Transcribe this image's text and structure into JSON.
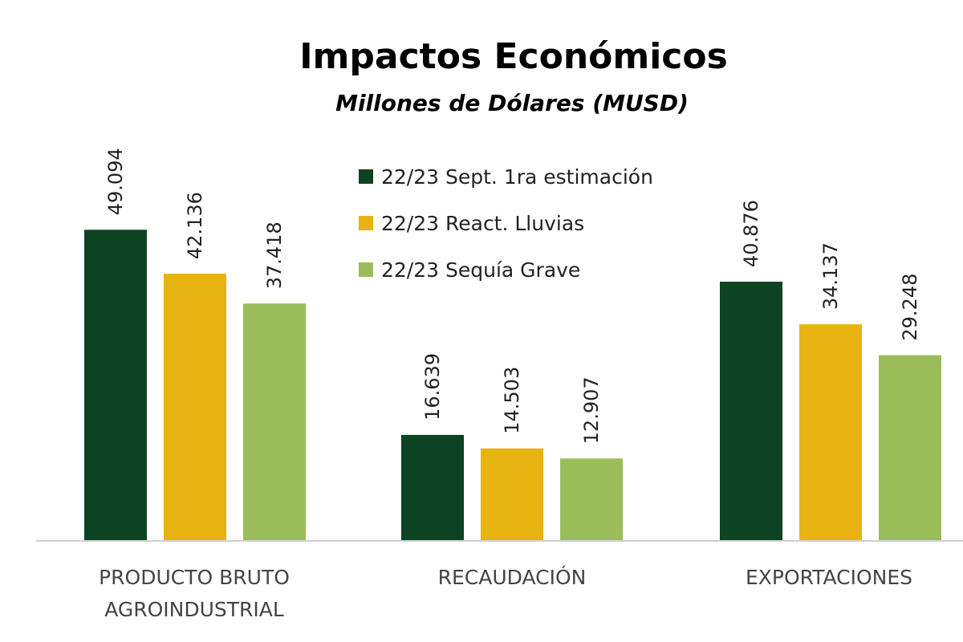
{
  "chart_data": {
    "type": "bar",
    "title": "Impactos Económicos",
    "subtitle": "Millones de Dólares (MUSD)",
    "categories": [
      [
        "PRODUCTO BRUTO",
        "AGROINDUSTRIAL"
      ],
      [
        "RECAUDACIÓN"
      ],
      [
        "EXPORTACIONES"
      ]
    ],
    "series": [
      {
        "name": "22/23 Sept. 1ra estimación",
        "color": "#0b4323",
        "values": [
          49094,
          16639,
          40876
        ],
        "labels": [
          "49.094",
          "16.639",
          "40.876"
        ]
      },
      {
        "name": "22/23 React. Lluvias",
        "color": "#e6b310",
        "values": [
          42136,
          14503,
          34137
        ],
        "labels": [
          "42.136",
          "14.503",
          "34.137"
        ]
      },
      {
        "name": "22/23 Sequía Grave",
        "color": "#9bbd59",
        "values": [
          37418,
          12907,
          29248
        ],
        "labels": [
          "37.418",
          "12.907",
          "29.248"
        ]
      }
    ],
    "ylim": [
      0,
      65000
    ],
    "grid": false,
    "legend_position": "top-center",
    "value_label_orientation": "vertical"
  }
}
